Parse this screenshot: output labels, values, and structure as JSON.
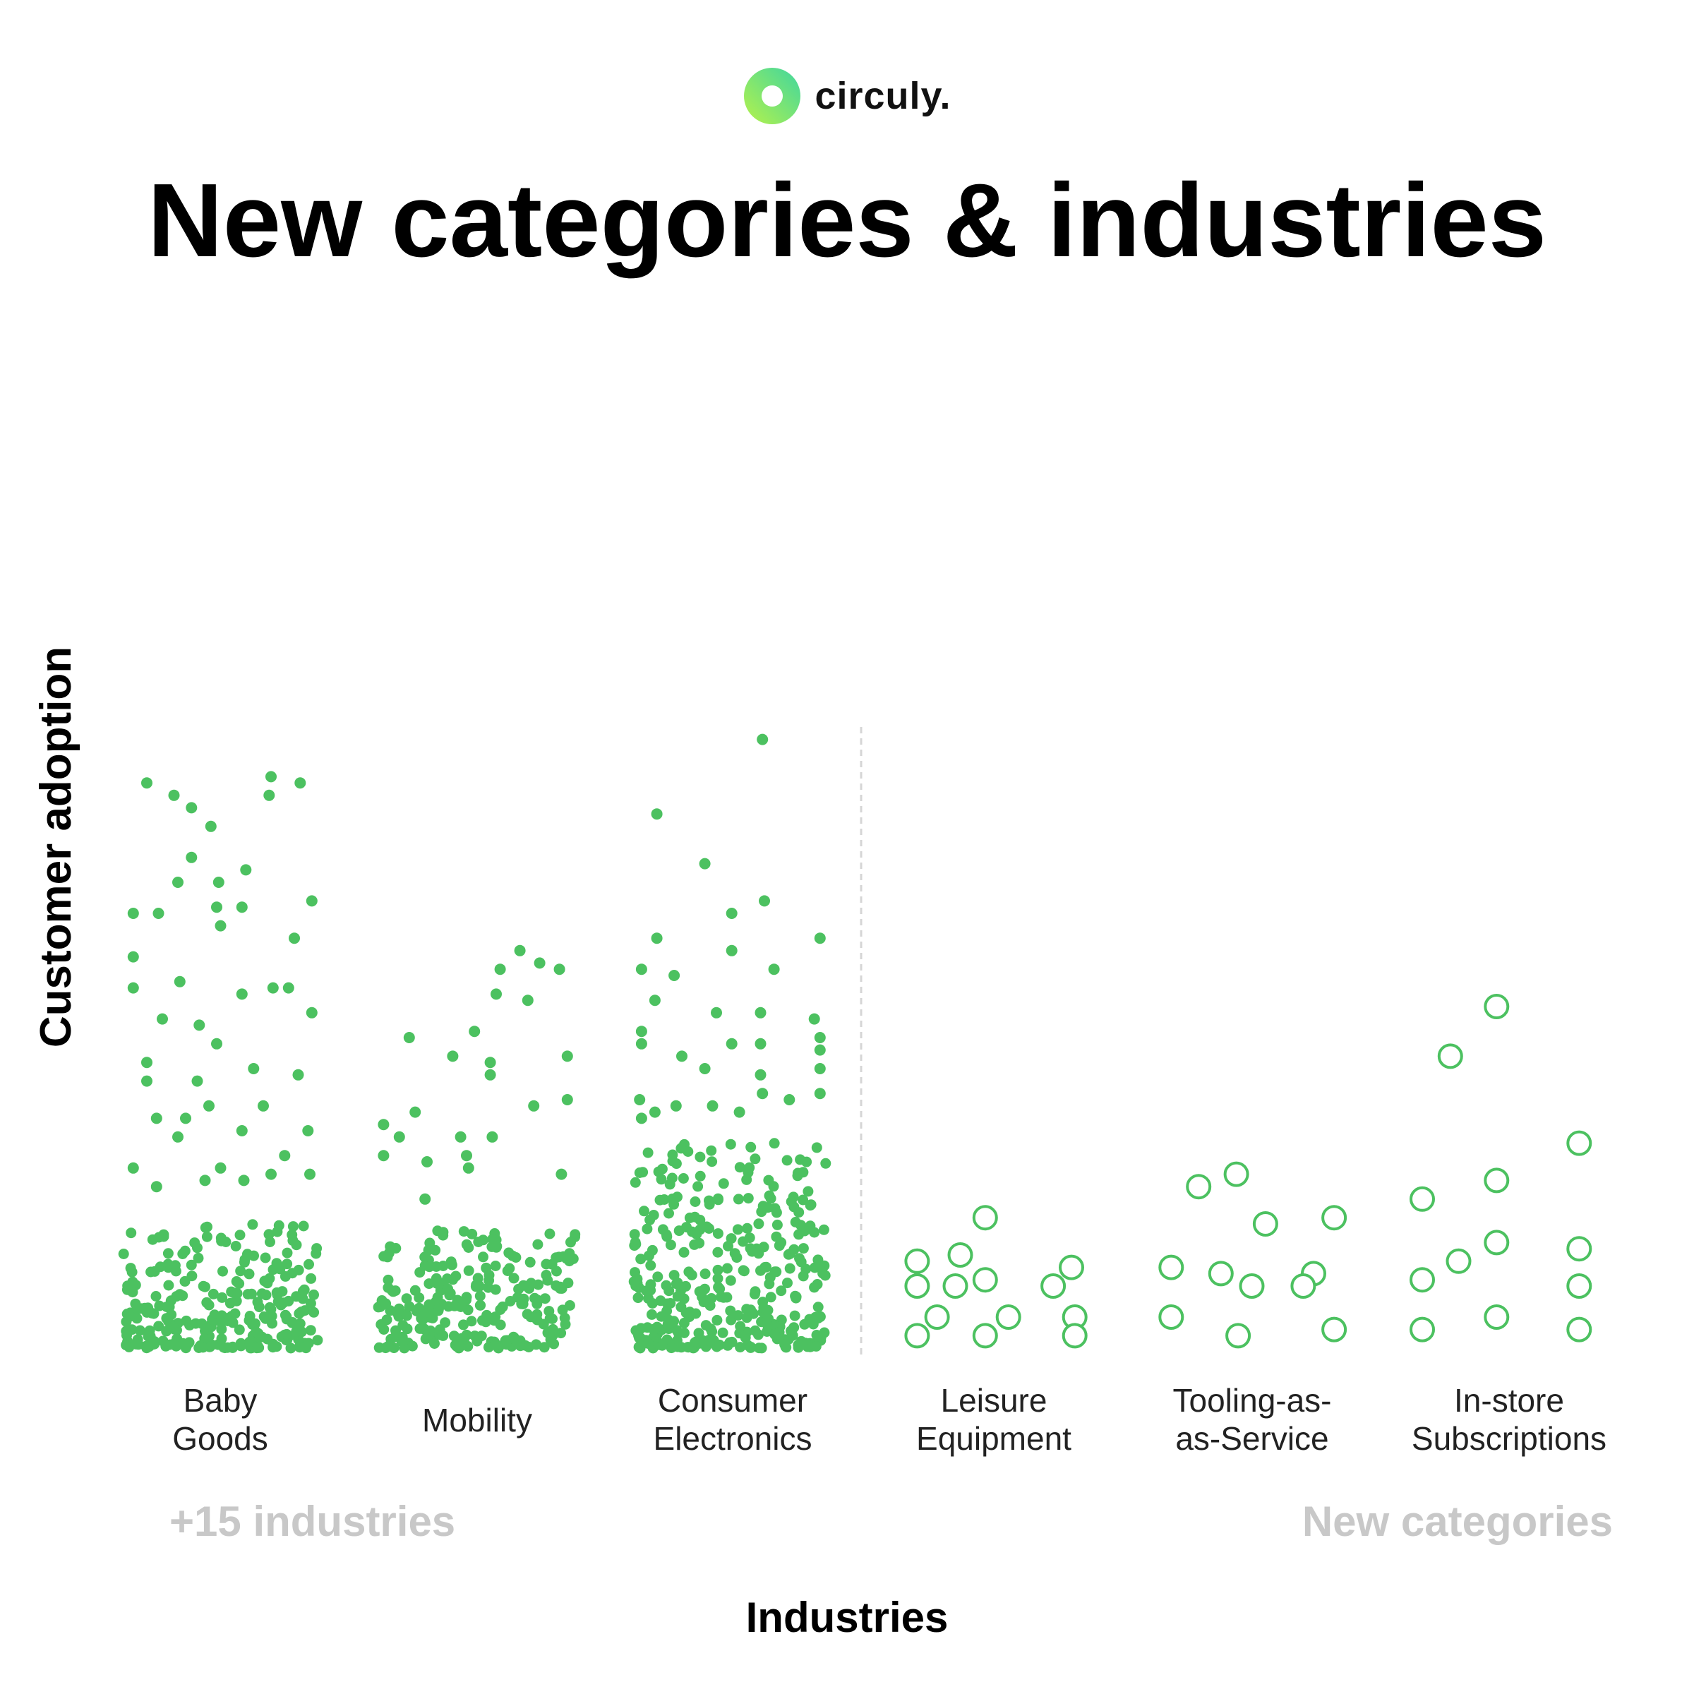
{
  "brand": {
    "name": "circuly.",
    "logo": "circuly-ring-logo"
  },
  "colors": {
    "accent": "#4CC160",
    "brand_gradient_start": "#B6F24A",
    "brand_gradient_end": "#3FD6A0",
    "muted_text": "#C8C8C8",
    "divider": "#D6D6D6"
  },
  "title": "New categories & industries",
  "chart_data": {
    "type": "scatter",
    "title": "New categories & industries",
    "xlabel": "Industries",
    "ylabel": "Customer adoption",
    "ylim": [
      0,
      100
    ],
    "grid": false,
    "categories": [
      {
        "label": [
          "Baby",
          "Goods"
        ],
        "group": "established",
        "style": "filled",
        "dense_count": 260,
        "dense_max": 20,
        "points": [
          [
            0.12,
            91
          ],
          [
            0.26,
            89
          ],
          [
            0.35,
            87
          ],
          [
            0.45,
            84
          ],
          [
            0.76,
            92
          ],
          [
            0.75,
            89
          ],
          [
            0.91,
            91
          ],
          [
            0.35,
            79
          ],
          [
            0.28,
            75
          ],
          [
            0.49,
            75
          ],
          [
            0.48,
            71
          ],
          [
            0.63,
            77
          ],
          [
            0.5,
            68
          ],
          [
            0.61,
            71
          ],
          [
            0.97,
            72
          ],
          [
            0.05,
            70
          ],
          [
            0.18,
            70
          ],
          [
            0.88,
            66
          ],
          [
            0.05,
            63
          ],
          [
            0.05,
            58
          ],
          [
            0.29,
            59
          ],
          [
            0.2,
            53
          ],
          [
            0.39,
            52
          ],
          [
            0.48,
            49
          ],
          [
            0.61,
            57
          ],
          [
            0.77,
            58
          ],
          [
            0.85,
            58
          ],
          [
            0.97,
            54
          ],
          [
            0.12,
            46
          ],
          [
            0.12,
            43
          ],
          [
            0.17,
            37
          ],
          [
            0.38,
            43
          ],
          [
            0.32,
            37
          ],
          [
            0.44,
            39
          ],
          [
            0.67,
            45
          ],
          [
            0.72,
            39
          ],
          [
            0.9,
            44
          ],
          [
            0.61,
            35
          ],
          [
            0.28,
            34
          ],
          [
            0.83,
            31
          ],
          [
            0.95,
            35
          ],
          [
            0.5,
            29
          ],
          [
            0.76,
            28
          ],
          [
            0.42,
            27
          ],
          [
            0.96,
            28
          ],
          [
            0.62,
            27
          ],
          [
            0.05,
            29
          ],
          [
            0.17,
            26
          ]
        ]
      },
      {
        "label": [
          "Mobility"
        ],
        "group": "established",
        "style": "filled",
        "dense_count": 240,
        "dense_max": 19,
        "points": [
          [
            0.72,
            64
          ],
          [
            0.62,
            61
          ],
          [
            0.82,
            62
          ],
          [
            0.92,
            61
          ],
          [
            0.6,
            57
          ],
          [
            0.76,
            56
          ],
          [
            0.16,
            50
          ],
          [
            0.49,
            51
          ],
          [
            0.38,
            47
          ],
          [
            0.57,
            46
          ],
          [
            0.96,
            47
          ],
          [
            0.57,
            44
          ],
          [
            0.96,
            40
          ],
          [
            0.19,
            38
          ],
          [
            0.03,
            36
          ],
          [
            0.79,
            39
          ],
          [
            0.58,
            34
          ],
          [
            0.11,
            34
          ],
          [
            0.42,
            34
          ],
          [
            0.45,
            31
          ],
          [
            0.03,
            31
          ],
          [
            0.25,
            30
          ],
          [
            0.46,
            29
          ],
          [
            0.93,
            28
          ],
          [
            0.24,
            24
          ]
        ]
      },
      {
        "label": [
          "Consumer",
          "Electronics"
        ],
        "group": "established",
        "style": "filled",
        "dense_count": 340,
        "dense_max": 33,
        "points": [
          [
            0.67,
            98
          ],
          [
            0.12,
            86
          ],
          [
            0.37,
            78
          ],
          [
            0.68,
            72
          ],
          [
            0.51,
            70
          ],
          [
            0.12,
            66
          ],
          [
            0.51,
            64
          ],
          [
            0.97,
            66
          ],
          [
            0.73,
            61
          ],
          [
            0.04,
            61
          ],
          [
            0.21,
            60
          ],
          [
            0.11,
            56
          ],
          [
            0.43,
            54
          ],
          [
            0.66,
            54
          ],
          [
            0.94,
            53
          ],
          [
            0.04,
            51
          ],
          [
            0.04,
            49
          ],
          [
            0.25,
            47
          ],
          [
            0.51,
            49
          ],
          [
            0.66,
            49
          ],
          [
            0.97,
            50
          ],
          [
            0.97,
            48
          ],
          [
            0.37,
            45
          ],
          [
            0.66,
            44
          ],
          [
            0.97,
            45
          ],
          [
            0.67,
            41
          ],
          [
            0.97,
            41
          ],
          [
            0.03,
            40
          ],
          [
            0.22,
            39
          ],
          [
            0.41,
            39
          ],
          [
            0.81,
            40
          ],
          [
            0.55,
            38
          ],
          [
            0.04,
            37
          ],
          [
            0.11,
            38
          ]
        ]
      },
      {
        "label": [
          "Leisure",
          "Equipment"
        ],
        "group": "new",
        "style": "hollow",
        "dense_count": 0,
        "dense_max": 0,
        "points": [
          [
            0.45,
            21
          ],
          [
            0.3,
            15
          ],
          [
            0.04,
            14
          ],
          [
            0.97,
            13
          ],
          [
            0.04,
            10
          ],
          [
            0.27,
            10
          ],
          [
            0.45,
            11
          ],
          [
            0.86,
            10
          ],
          [
            0.16,
            5
          ],
          [
            0.59,
            5
          ],
          [
            0.99,
            5
          ],
          [
            0.04,
            2
          ],
          [
            0.45,
            2
          ],
          [
            0.99,
            2
          ]
        ]
      },
      {
        "label": [
          "Tooling-as-",
          "as-Service"
        ],
        "group": "new",
        "style": "hollow",
        "dense_count": 0,
        "dense_max": 0,
        "points": [
          [
            0.41,
            28
          ],
          [
            0.19,
            26
          ],
          [
            0.58,
            20
          ],
          [
            0.98,
            21
          ],
          [
            0.03,
            13
          ],
          [
            0.32,
            12
          ],
          [
            0.86,
            12
          ],
          [
            0.5,
            10
          ],
          [
            0.8,
            10
          ],
          [
            0.03,
            5
          ],
          [
            0.42,
            2
          ],
          [
            0.98,
            3
          ]
        ]
      },
      {
        "label": [
          "In-store",
          "Subscriptions"
        ],
        "group": "new",
        "style": "hollow",
        "dense_count": 0,
        "dense_max": 0,
        "points": [
          [
            0.48,
            55
          ],
          [
            0.2,
            47
          ],
          [
            0.98,
            33
          ],
          [
            0.48,
            27
          ],
          [
            0.03,
            24
          ],
          [
            0.48,
            17
          ],
          [
            0.98,
            16
          ],
          [
            0.25,
            14
          ],
          [
            0.03,
            11
          ],
          [
            0.98,
            10
          ],
          [
            0.48,
            5
          ],
          [
            0.03,
            3
          ],
          [
            0.98,
            3
          ]
        ]
      }
    ],
    "footnotes": {
      "left": "+15 industries",
      "right": "New categories"
    }
  }
}
